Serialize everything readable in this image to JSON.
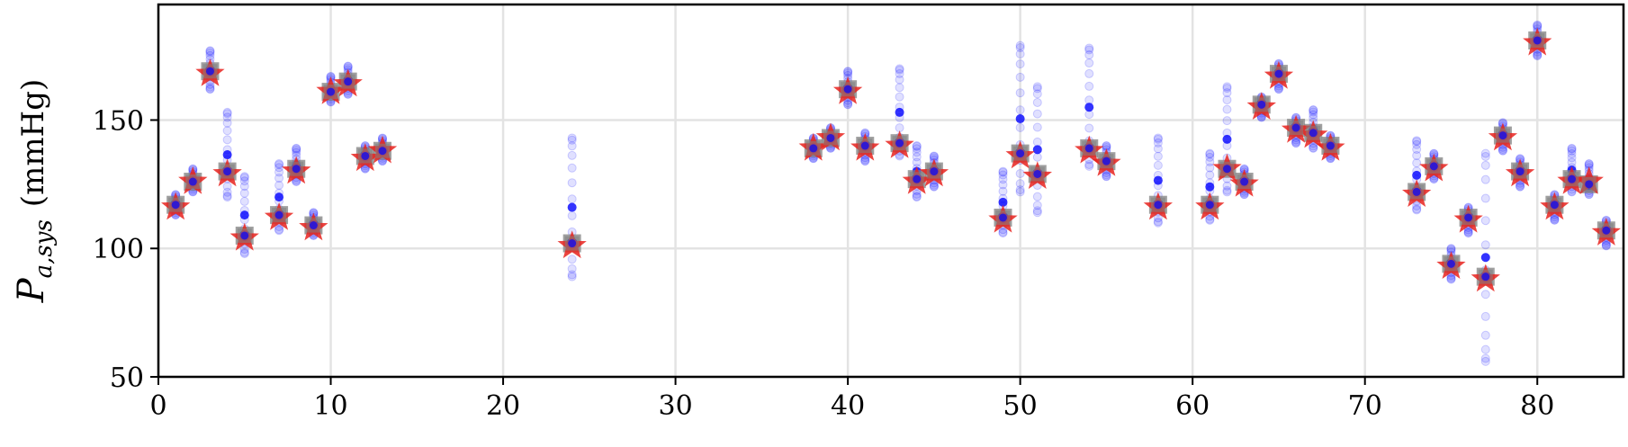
{
  "chart_data": {
    "type": "scatter",
    "ylabel_main": "P",
    "ylabel_sub": "a,sys",
    "ylabel_unit": "(mmHg)",
    "xlim": [
      0,
      85
    ],
    "ylim": [
      50,
      195
    ],
    "xticks": [
      0,
      10,
      20,
      30,
      40,
      50,
      60,
      70,
      80
    ],
    "yticks": [
      50,
      100,
      150
    ],
    "grid": true,
    "colors": {
      "samples": "#0000ff",
      "mean": "#808080",
      "reference": "#e8231f"
    },
    "series": [
      {
        "marker": "star",
        "points": [
          [
            1,
            116
          ],
          [
            2,
            126
          ],
          [
            3,
            168
          ],
          [
            4,
            129
          ],
          [
            5,
            104
          ],
          [
            7,
            112
          ],
          [
            8,
            130
          ],
          [
            9,
            108
          ],
          [
            10,
            161
          ],
          [
            11,
            164
          ],
          [
            12,
            135
          ],
          [
            13,
            138
          ],
          [
            24,
            101
          ],
          [
            38,
            139
          ],
          [
            39,
            143
          ],
          [
            40,
            161
          ],
          [
            41,
            139
          ],
          [
            43,
            140
          ],
          [
            44,
            126
          ],
          [
            45,
            129
          ],
          [
            49,
            111
          ],
          [
            50,
            136
          ],
          [
            51,
            128
          ],
          [
            54,
            138
          ],
          [
            55,
            133
          ],
          [
            58,
            116
          ],
          [
            61,
            116
          ],
          [
            62,
            131
          ],
          [
            63,
            125
          ],
          [
            64,
            155
          ],
          [
            65,
            167
          ],
          [
            66,
            146
          ],
          [
            67,
            144
          ],
          [
            68,
            139
          ],
          [
            73,
            121
          ],
          [
            74,
            131
          ],
          [
            75,
            93
          ],
          [
            76,
            111
          ],
          [
            77,
            88
          ],
          [
            78,
            143
          ],
          [
            79,
            129
          ],
          [
            80,
            180
          ],
          [
            81,
            116
          ],
          [
            82,
            126
          ],
          [
            83,
            126
          ],
          [
            84,
            106
          ]
        ]
      },
      {
        "marker": "square",
        "points": [
          [
            1,
            117
          ],
          [
            2,
            126
          ],
          [
            3,
            169
          ],
          [
            4,
            130
          ],
          [
            5,
            105
          ],
          [
            7,
            113
          ],
          [
            8,
            131
          ],
          [
            9,
            109
          ],
          [
            10,
            161
          ],
          [
            11,
            165
          ],
          [
            12,
            136
          ],
          [
            13,
            138
          ],
          [
            24,
            102
          ],
          [
            38,
            139
          ],
          [
            39,
            143
          ],
          [
            40,
            162
          ],
          [
            41,
            140
          ],
          [
            43,
            141
          ],
          [
            44,
            127
          ],
          [
            45,
            130
          ],
          [
            49,
            112
          ],
          [
            50,
            137
          ],
          [
            51,
            129
          ],
          [
            54,
            139
          ],
          [
            55,
            134
          ],
          [
            58,
            117
          ],
          [
            61,
            117
          ],
          [
            62,
            131
          ],
          [
            63,
            126
          ],
          [
            64,
            156
          ],
          [
            65,
            168
          ],
          [
            66,
            147
          ],
          [
            67,
            145
          ],
          [
            68,
            140
          ],
          [
            73,
            122
          ],
          [
            74,
            132
          ],
          [
            75,
            94
          ],
          [
            76,
            112
          ],
          [
            77,
            89
          ],
          [
            78,
            144
          ],
          [
            79,
            130
          ],
          [
            80,
            181
          ],
          [
            81,
            117
          ],
          [
            82,
            127
          ],
          [
            83,
            125
          ],
          [
            84,
            107
          ]
        ]
      },
      {
        "marker": "circle",
        "spread": [
          [
            1,
            113,
            121
          ],
          [
            2,
            122,
            131
          ],
          [
            3,
            162,
            177
          ],
          [
            4,
            120,
            153
          ],
          [
            5,
            98,
            128
          ],
          [
            7,
            107,
            133
          ],
          [
            8,
            126,
            139
          ],
          [
            9,
            105,
            114
          ],
          [
            10,
            157,
            167
          ],
          [
            11,
            160,
            171
          ],
          [
            12,
            131,
            140
          ],
          [
            13,
            134,
            143
          ],
          [
            24,
            89,
            143
          ],
          [
            38,
            135,
            143
          ],
          [
            39,
            139,
            147
          ],
          [
            40,
            156,
            169
          ],
          [
            41,
            134,
            145
          ],
          [
            43,
            136,
            170
          ],
          [
            44,
            120,
            140
          ],
          [
            45,
            124,
            136
          ],
          [
            49,
            106,
            130
          ],
          [
            50,
            122,
            179
          ],
          [
            51,
            114,
            163
          ],
          [
            54,
            132,
            178
          ],
          [
            55,
            128,
            140
          ],
          [
            58,
            110,
            143
          ],
          [
            61,
            111,
            137
          ],
          [
            62,
            122,
            163
          ],
          [
            63,
            121,
            131
          ],
          [
            64,
            151,
            159
          ],
          [
            65,
            162,
            172
          ],
          [
            66,
            141,
            151
          ],
          [
            67,
            139,
            154
          ],
          [
            68,
            135,
            144
          ],
          [
            73,
            115,
            142
          ],
          [
            74,
            127,
            137
          ],
          [
            75,
            88,
            100
          ],
          [
            76,
            106,
            116
          ],
          [
            77,
            56,
            137
          ],
          [
            78,
            138,
            149
          ],
          [
            79,
            124,
            135
          ],
          [
            80,
            175,
            187
          ],
          [
            81,
            111,
            121
          ],
          [
            82,
            122,
            139
          ],
          [
            83,
            121,
            133
          ],
          [
            84,
            101,
            111
          ]
        ]
      }
    ]
  }
}
